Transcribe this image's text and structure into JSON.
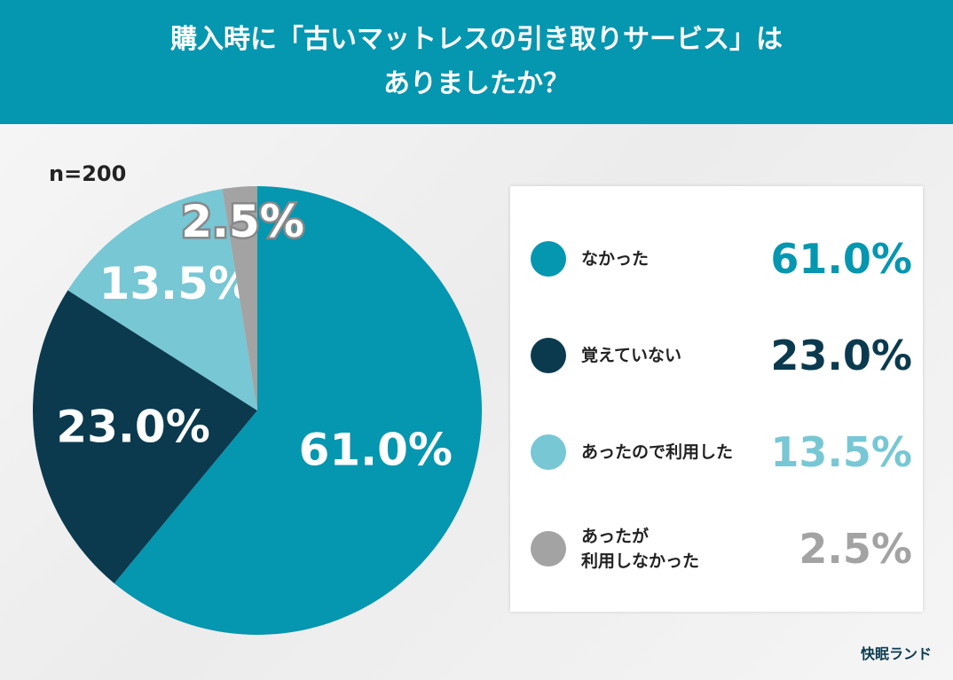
{
  "chart_data": {
    "type": "pie",
    "title": [
      "購入時に「古いマットレスの引き取りサービス」は",
      "ありましたか？"
    ],
    "sample": "n=200",
    "categories": [
      "なかった",
      "覚えていない",
      "あったので利用した",
      "あったが\n利用しなかった"
    ],
    "values": [
      61.0,
      23.0,
      13.5,
      2.5
    ],
    "value_labels": [
      "61.0%",
      "23.0%",
      "13.5%",
      "2.5%"
    ],
    "colors": [
      "#0596b0",
      "#0b3a4f",
      "#77c7d4",
      "#a3a3a3"
    ]
  },
  "brand": "快眠ランド"
}
